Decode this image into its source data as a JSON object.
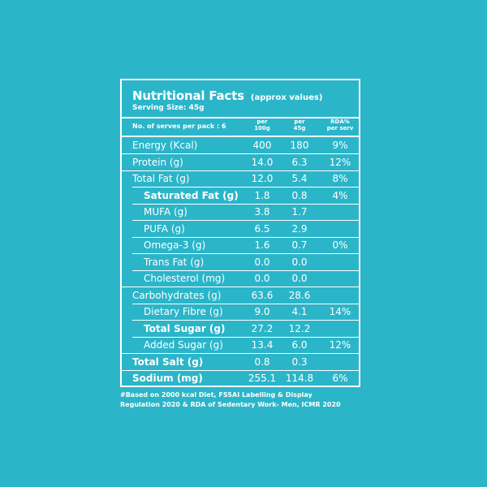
{
  "panel": {
    "title": "Nutritional Facts",
    "approx": "(approx values)",
    "serving": "Serving Size: 45g",
    "serves_label": "No. of serves per pack : 6",
    "columns": [
      {
        "line1": "per",
        "line2": "100g"
      },
      {
        "line1": "per",
        "line2": "45g"
      },
      {
        "line1": "RDA%",
        "line2": "per serv"
      }
    ],
    "rows": [
      {
        "label": "Energy (Kcal)",
        "per100": "400",
        "per45": "180",
        "rda": "9%",
        "indent": false,
        "bold": false
      },
      {
        "label": "Protein (g)",
        "per100": "14.0",
        "per45": "6.3",
        "rda": "12%",
        "indent": false,
        "bold": false
      },
      {
        "label": "Total Fat (g)",
        "per100": "12.0",
        "per45": "5.4",
        "rda": "8%",
        "indent": false,
        "bold": false
      },
      {
        "label": "Saturated Fat (g)",
        "per100": "1.8",
        "per45": "0.8",
        "rda": "4%",
        "indent": true,
        "bold": true
      },
      {
        "label": "MUFA (g)",
        "per100": "3.8",
        "per45": "1.7",
        "rda": "",
        "indent": true,
        "bold": false
      },
      {
        "label": "PUFA (g)",
        "per100": "6.5",
        "per45": "2.9",
        "rda": "",
        "indent": true,
        "bold": false
      },
      {
        "label": "Omega-3 (g)",
        "per100": "1.6",
        "per45": "0.7",
        "rda": "0%",
        "indent": true,
        "bold": false
      },
      {
        "label": "Trans Fat (g)",
        "per100": "0.0",
        "per45": "0.0",
        "rda": "",
        "indent": true,
        "bold": false
      },
      {
        "label": "Cholesterol (mg)",
        "per100": "0.0",
        "per45": "0.0",
        "rda": "",
        "indent": true,
        "bold": false
      },
      {
        "label": "Carbohydrates (g)",
        "per100": "63.6",
        "per45": "28.6",
        "rda": "",
        "indent": false,
        "bold": false
      },
      {
        "label": "Dietary Fibre (g)",
        "per100": "9.0",
        "per45": "4.1",
        "rda": "14%",
        "indent": true,
        "bold": false
      },
      {
        "label": "Total Sugar (g)",
        "per100": "27.2",
        "per45": "12.2",
        "rda": "",
        "indent": true,
        "bold": true
      },
      {
        "label": "Added Sugar (g)",
        "per100": "13.4",
        "per45": "6.0",
        "rda": "12%",
        "indent": true,
        "bold": false
      },
      {
        "label": "Total Salt (g)",
        "per100": "0.8",
        "per45": "0.3",
        "rda": "",
        "indent": false,
        "bold": true
      },
      {
        "label": "Sodium (mg)",
        "per100": "255.1",
        "per45": "114.8",
        "rda": "6%",
        "indent": false,
        "bold": true
      }
    ]
  },
  "footnote": {
    "line1": "#Based on 2000 kcal Diet, FSSAI Labelling & Display",
    "line2": "Regulation 2020 & RDA of Sedentary Work- Men, ICMR 2020"
  },
  "colors": {
    "background": "#2bb5c9",
    "foreground": "#ffffff"
  }
}
